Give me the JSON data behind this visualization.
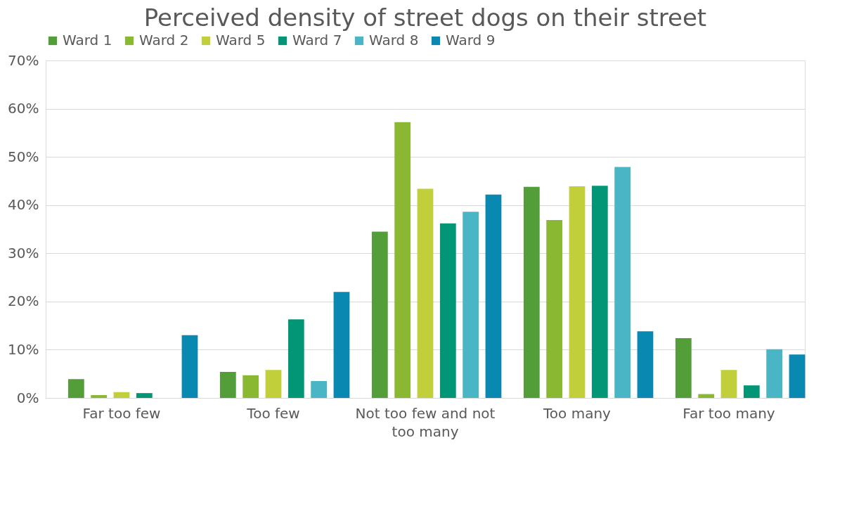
{
  "chart_data": {
    "type": "bar",
    "title": "Perceived density of street dogs on their street",
    "categories": [
      "Far too few",
      "Too few",
      "Not too few and not too many",
      "Too many",
      "Far too many"
    ],
    "series": [
      {
        "name": "Ward 1",
        "color": "#549e39",
        "values": [
          3.9,
          5.4,
          34.5,
          43.8,
          12.4
        ]
      },
      {
        "name": "Ward 2",
        "color": "#8ab833",
        "values": [
          0.6,
          4.7,
          57.2,
          36.9,
          0.8
        ]
      },
      {
        "name": "Ward 5",
        "color": "#c0cf3a",
        "values": [
          1.2,
          5.8,
          43.4,
          43.9,
          5.8
        ]
      },
      {
        "name": "Ward 7",
        "color": "#029676",
        "values": [
          1.0,
          16.3,
          36.2,
          44.0,
          2.6
        ]
      },
      {
        "name": "Ward 8",
        "color": "#4ab5c4",
        "values": [
          0,
          3.5,
          38.6,
          47.9,
          10.1
        ]
      },
      {
        "name": "Ward 9",
        "color": "#0989b1",
        "values": [
          13.0,
          22.0,
          42.2,
          13.8,
          9.0
        ]
      }
    ],
    "ylim": [
      0,
      70
    ],
    "yticks": [
      {
        "value": 0,
        "label": "0%"
      },
      {
        "value": 10,
        "label": "10%"
      },
      {
        "value": 20,
        "label": "20%"
      },
      {
        "value": 30,
        "label": "30%"
      },
      {
        "value": 40,
        "label": "40%"
      },
      {
        "value": 50,
        "label": "50%"
      },
      {
        "value": 60,
        "label": "60%"
      },
      {
        "value": 70,
        "label": "70%"
      }
    ],
    "grid": "y",
    "legend": "top"
  }
}
